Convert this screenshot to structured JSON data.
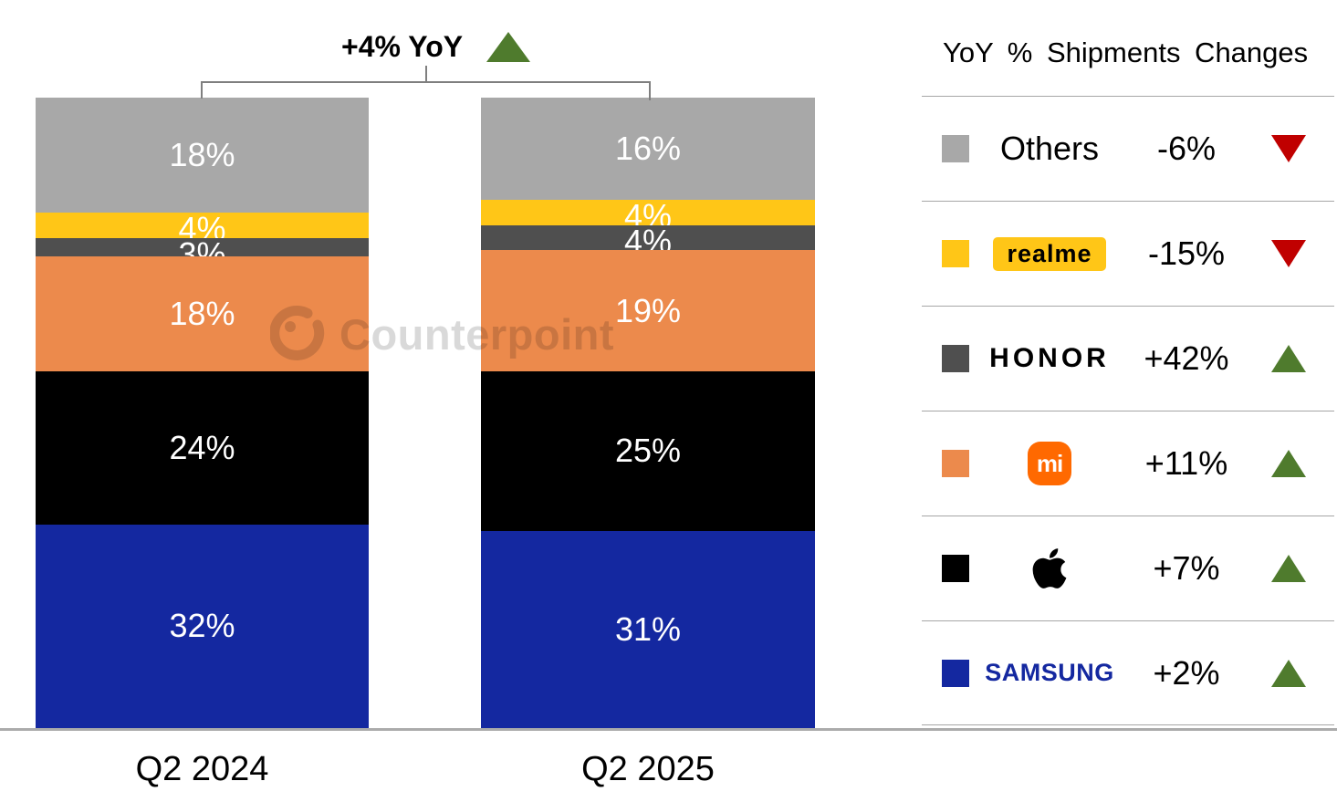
{
  "title": {
    "text": "+4% YoY",
    "direction": "up"
  },
  "watermark": {
    "text": "Counterpoint"
  },
  "colors": {
    "up_triangle": "#4f7b2d",
    "down_triangle": "#c00000",
    "divider": "#a6a6a6",
    "axis_line": "#ababab",
    "bracket": "#7f7f7f",
    "bar_label_text": "#ffffff",
    "samsung_blue": "#1428a0",
    "mi_orange": "#ff6900",
    "realme_yellow": "#ffc617"
  },
  "legend": {
    "header": "YoY % Shipments Changes",
    "rows": [
      {
        "brand": "Others",
        "change": "-6%",
        "direction": "down",
        "color": "#a8a8a8"
      },
      {
        "brand": "realme",
        "change": "-15%",
        "direction": "down",
        "color": "#ffc617"
      },
      {
        "brand": "HONOR",
        "change": "+42%",
        "direction": "up",
        "color": "#4f4f4f"
      },
      {
        "brand": "Xiaomi",
        "change": "+11%",
        "direction": "up",
        "color": "#ec8a4c",
        "logo_text": "mi"
      },
      {
        "brand": "Apple",
        "change": "+7%",
        "direction": "up",
        "color": "#000000"
      },
      {
        "brand": "Samsung",
        "change": "+2%",
        "direction": "up",
        "color": "#1428a0",
        "logo_text": "SAMSUNG"
      }
    ]
  },
  "chart_data": {
    "type": "bar",
    "stacked": true,
    "title": "+4% YoY",
    "legend_title": "YoY % Shipments Changes",
    "categories": [
      "Q2 2024",
      "Q2 2025"
    ],
    "series": [
      {
        "name": "Others",
        "color": "#a8a8a8",
        "values": [
          18,
          16
        ]
      },
      {
        "name": "realme",
        "color": "#ffc617",
        "values": [
          4,
          4
        ]
      },
      {
        "name": "HONOR",
        "color": "#4f4f4f",
        "values": [
          3,
          4
        ]
      },
      {
        "name": "Xiaomi",
        "color": "#ec8a4c",
        "values": [
          18,
          19
        ]
      },
      {
        "name": "Apple",
        "color": "#000000",
        "values": [
          24,
          25
        ]
      },
      {
        "name": "Samsung",
        "color": "#1428a0",
        "values": [
          32,
          31
        ]
      }
    ],
    "value_suffix": "%",
    "ylim": [
      0,
      99
    ],
    "grid": false,
    "legend_position": "right",
    "notes": "stacked shipment share bars; segments labeled with percent share; overall YoY change +4%"
  }
}
